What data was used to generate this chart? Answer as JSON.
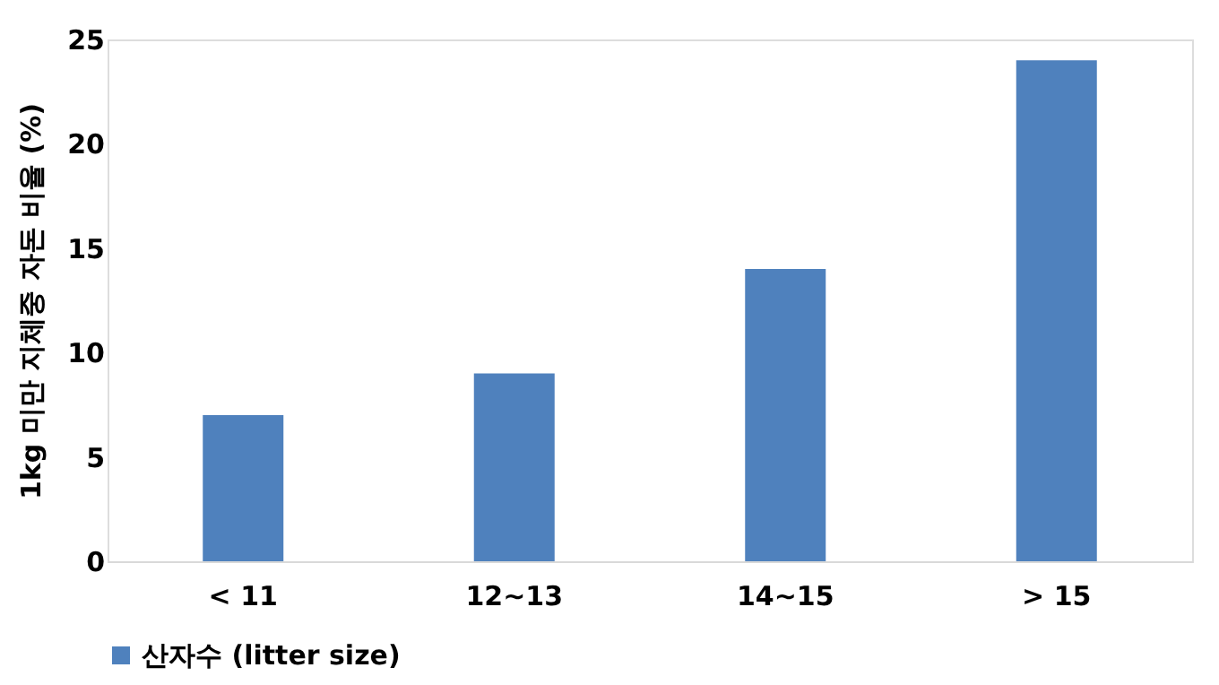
{
  "chart_data": {
    "type": "bar",
    "ylabel": "1kg 미만 지체중 자돈 비율 (%)",
    "categories": [
      "< 11",
      "12~13",
      "14~15",
      "> 15"
    ],
    "series": [
      {
        "name": "산자수 (litter size)",
        "color": "#4f81bd",
        "values": [
          7,
          9,
          14,
          24
        ]
      }
    ],
    "ylim": [
      0,
      25
    ],
    "yticks": [
      0,
      5,
      10,
      15,
      20,
      25
    ],
    "grid": false,
    "legend": "bottom"
  }
}
